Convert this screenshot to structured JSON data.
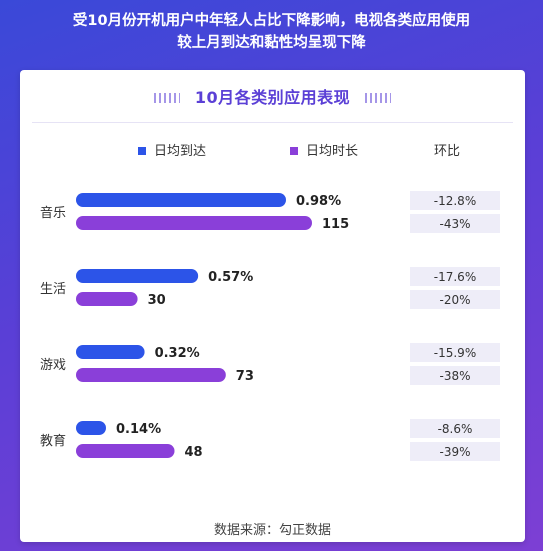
{
  "header": {
    "line1": "受10月份开机用户中年轻人占比下降影响，电视各类应用使用",
    "line2": "较上月到达和黏性均呈现下降"
  },
  "legend": {
    "reach": "日均到达",
    "duration": "日均时长",
    "huanbi": "环比"
  },
  "source": "数据来源：勾正数据",
  "colors": {
    "reach": "#2c54e8",
    "duration": "#8a3fd9",
    "accent": "#5b40d6",
    "compare_bg": "#eeedf8"
  },
  "chart_data": {
    "type": "bar",
    "orientation": "horizontal",
    "title": "10月各类别应用表现",
    "categories": [
      "音乐",
      "生活",
      "游戏",
      "教育"
    ],
    "series": [
      {
        "name": "日均到达",
        "values": [
          0.98,
          0.57,
          0.32,
          0.14
        ],
        "labels": [
          "0.98%",
          "0.57%",
          "0.32%",
          "0.14%"
        ],
        "change": [
          "-12.8%",
          "-17.6%",
          "-15.9%",
          "-8.6%"
        ]
      },
      {
        "name": "日均时长",
        "values": [
          115,
          30,
          73,
          48
        ],
        "labels": [
          "115",
          "30",
          "73",
          "48"
        ],
        "change": [
          "-43%",
          "-20%",
          "-38%",
          "-39%"
        ]
      }
    ],
    "legend": "top",
    "grid": false
  }
}
